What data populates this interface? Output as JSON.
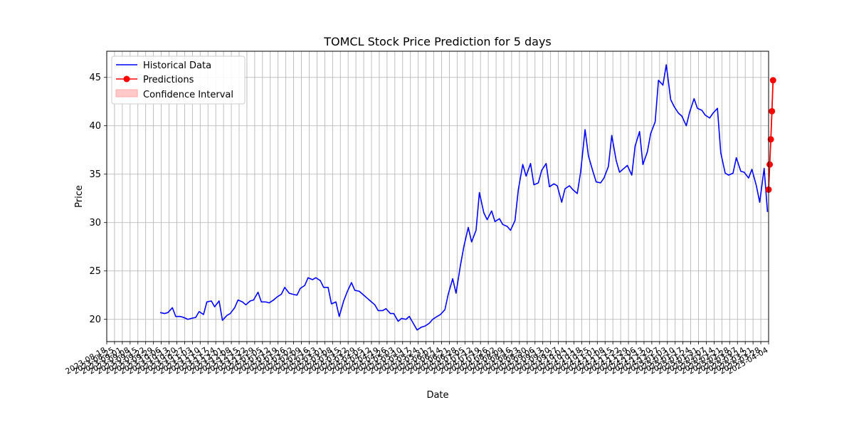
{
  "chart_data": {
    "type": "line",
    "title": "TOMCL Stock Price Prediction for 5 days",
    "xlabel": "Date",
    "ylabel": "Price",
    "ylim": [
      17.7,
      47.7
    ],
    "yticks": [
      20,
      25,
      30,
      35,
      40,
      45
    ],
    "grid": true,
    "legend_position": "top-left",
    "legend": [
      "Historical Data",
      "Predictions",
      "Confidence Interval"
    ],
    "colors": {
      "historical": "#0000ff",
      "predictions": "#ff0000",
      "confidence": "#ffbbbb",
      "grid": "#b0b0b0"
    },
    "x_range": [
      "2023-08-18",
      "2025-04-04"
    ],
    "x_tick_first": "2023-08-18",
    "x_tick_last": "2025-04-04",
    "series": [
      {
        "name": "Historical Data",
        "points": [
          [
            "2023-10-05",
            20.7
          ],
          [
            "2023-10-09",
            20.6
          ],
          [
            "2023-10-12",
            20.7
          ],
          [
            "2023-10-16",
            21.2
          ],
          [
            "2023-10-19",
            20.3
          ],
          [
            "2023-10-23",
            20.3
          ],
          [
            "2023-10-26",
            20.2
          ],
          [
            "2023-10-30",
            20.0
          ],
          [
            "2023-11-02",
            20.1
          ],
          [
            "2023-11-06",
            20.2
          ],
          [
            "2023-11-09",
            20.8
          ],
          [
            "2023-11-13",
            20.5
          ],
          [
            "2023-11-16",
            21.8
          ],
          [
            "2023-11-20",
            21.9
          ],
          [
            "2023-11-23",
            21.3
          ],
          [
            "2023-11-27",
            21.9
          ],
          [
            "2023-11-30",
            19.9
          ],
          [
            "2023-12-04",
            20.4
          ],
          [
            "2023-12-07",
            20.6
          ],
          [
            "2023-12-11",
            21.2
          ],
          [
            "2023-12-14",
            22.0
          ],
          [
            "2023-12-18",
            21.8
          ],
          [
            "2023-12-21",
            21.5
          ],
          [
            "2023-12-25",
            21.9
          ],
          [
            "2023-12-28",
            22.0
          ],
          [
            "2024-01-01",
            22.8
          ],
          [
            "2024-01-04",
            21.8
          ],
          [
            "2024-01-08",
            21.8
          ],
          [
            "2024-01-11",
            21.7
          ],
          [
            "2024-01-15",
            22.0
          ],
          [
            "2024-01-18",
            22.3
          ],
          [
            "2024-01-22",
            22.6
          ],
          [
            "2024-01-25",
            23.3
          ],
          [
            "2024-01-29",
            22.7
          ],
          [
            "2024-02-01",
            22.6
          ],
          [
            "2024-02-05",
            22.5
          ],
          [
            "2024-02-08",
            23.2
          ],
          [
            "2024-02-12",
            23.5
          ],
          [
            "2024-02-15",
            24.3
          ],
          [
            "2024-02-19",
            24.1
          ],
          [
            "2024-02-22",
            24.3
          ],
          [
            "2024-02-26",
            24.0
          ],
          [
            "2024-02-29",
            23.3
          ],
          [
            "2024-03-04",
            23.3
          ],
          [
            "2024-03-07",
            21.6
          ],
          [
            "2024-03-11",
            21.8
          ],
          [
            "2024-03-14",
            20.3
          ],
          [
            "2024-03-18",
            21.9
          ],
          [
            "2024-03-21",
            22.8
          ],
          [
            "2024-03-25",
            23.8
          ],
          [
            "2024-03-28",
            23.0
          ],
          [
            "2024-04-01",
            22.9
          ],
          [
            "2024-04-04",
            22.6
          ],
          [
            "2024-04-08",
            22.2
          ],
          [
            "2024-04-11",
            21.9
          ],
          [
            "2024-04-15",
            21.5
          ],
          [
            "2024-04-18",
            20.9
          ],
          [
            "2024-04-22",
            20.9
          ],
          [
            "2024-04-25",
            21.1
          ],
          [
            "2024-04-29",
            20.6
          ],
          [
            "2024-05-02",
            20.6
          ],
          [
            "2024-05-06",
            19.8
          ],
          [
            "2024-05-09",
            20.1
          ],
          [
            "2024-05-13",
            20.0
          ],
          [
            "2024-05-16",
            20.3
          ],
          [
            "2024-05-20",
            19.5
          ],
          [
            "2024-05-23",
            18.9
          ],
          [
            "2024-05-27",
            19.2
          ],
          [
            "2024-05-30",
            19.3
          ],
          [
            "2024-06-03",
            19.6
          ],
          [
            "2024-06-06",
            20.0
          ],
          [
            "2024-06-10",
            20.3
          ],
          [
            "2024-06-13",
            20.5
          ],
          [
            "2024-06-17",
            21.0
          ],
          [
            "2024-06-20",
            22.6
          ],
          [
            "2024-06-24",
            24.2
          ],
          [
            "2024-06-27",
            22.7
          ],
          [
            "2024-07-01",
            25.6
          ],
          [
            "2024-07-04",
            27.5
          ],
          [
            "2024-07-08",
            29.5
          ],
          [
            "2024-07-11",
            28.0
          ],
          [
            "2024-07-15",
            29.2
          ],
          [
            "2024-07-18",
            33.1
          ],
          [
            "2024-07-22",
            31.0
          ],
          [
            "2024-07-25",
            30.3
          ],
          [
            "2024-07-29",
            31.2
          ],
          [
            "2024-08-01",
            30.1
          ],
          [
            "2024-08-05",
            30.4
          ],
          [
            "2024-08-08",
            29.8
          ],
          [
            "2024-08-12",
            29.6
          ],
          [
            "2024-08-15",
            29.2
          ],
          [
            "2024-08-19",
            30.2
          ],
          [
            "2024-08-22",
            33.4
          ],
          [
            "2024-08-26",
            36.0
          ],
          [
            "2024-08-29",
            34.8
          ],
          [
            "2024-09-02",
            36.1
          ],
          [
            "2024-09-05",
            33.9
          ],
          [
            "2024-09-09",
            34.1
          ],
          [
            "2024-09-12",
            35.4
          ],
          [
            "2024-09-16",
            36.1
          ],
          [
            "2024-09-19",
            33.7
          ],
          [
            "2024-09-23",
            34.0
          ],
          [
            "2024-09-26",
            33.8
          ],
          [
            "2024-09-30",
            32.1
          ],
          [
            "2024-10-03",
            33.5
          ],
          [
            "2024-10-07",
            33.8
          ],
          [
            "2024-10-10",
            33.4
          ],
          [
            "2024-10-14",
            33.0
          ],
          [
            "2024-10-17",
            35.2
          ],
          [
            "2024-10-21",
            39.6
          ],
          [
            "2024-10-24",
            36.9
          ],
          [
            "2024-10-28",
            35.3
          ],
          [
            "2024-10-31",
            34.2
          ],
          [
            "2024-11-04",
            34.1
          ],
          [
            "2024-11-07",
            34.6
          ],
          [
            "2024-11-11",
            35.8
          ],
          [
            "2024-11-14",
            39.0
          ],
          [
            "2024-11-18",
            36.4
          ],
          [
            "2024-11-21",
            35.2
          ],
          [
            "2024-11-25",
            35.6
          ],
          [
            "2024-11-28",
            35.9
          ],
          [
            "2024-12-02",
            34.9
          ],
          [
            "2024-12-05",
            37.9
          ],
          [
            "2024-12-09",
            39.4
          ],
          [
            "2024-12-12",
            36.0
          ],
          [
            "2024-12-16",
            37.3
          ],
          [
            "2024-12-19",
            39.2
          ],
          [
            "2024-12-23",
            40.4
          ],
          [
            "2024-12-26",
            44.7
          ],
          [
            "2024-12-30",
            44.2
          ],
          [
            "2025-01-02",
            46.3
          ],
          [
            "2025-01-06",
            42.7
          ],
          [
            "2025-01-09",
            42.0
          ],
          [
            "2025-01-13",
            41.3
          ],
          [
            "2025-01-16",
            41.0
          ],
          [
            "2025-01-20",
            40.0
          ],
          [
            "2025-01-23",
            41.4
          ],
          [
            "2025-01-27",
            42.8
          ],
          [
            "2025-01-30",
            41.8
          ],
          [
            "2025-02-03",
            41.6
          ],
          [
            "2025-02-06",
            41.1
          ],
          [
            "2025-02-10",
            40.8
          ],
          [
            "2025-02-13",
            41.3
          ],
          [
            "2025-02-17",
            41.8
          ],
          [
            "2025-02-20",
            37.2
          ],
          [
            "2025-02-24",
            35.1
          ],
          [
            "2025-02-27",
            34.9
          ],
          [
            "2025-03-03",
            35.1
          ],
          [
            "2025-03-06",
            36.7
          ],
          [
            "2025-03-10",
            35.3
          ],
          [
            "2025-03-13",
            35.2
          ],
          [
            "2025-03-17",
            34.6
          ],
          [
            "2025-03-20",
            35.5
          ],
          [
            "2025-03-24",
            33.8
          ],
          [
            "2025-03-27",
            32.1
          ],
          [
            "2025-03-31",
            35.6
          ],
          [
            "2025-04-03",
            31.1
          ]
        ]
      },
      {
        "name": "Predictions",
        "points": [
          [
            "2025-04-04",
            33.4
          ],
          [
            "2025-04-05",
            36.0
          ],
          [
            "2025-04-06",
            38.6
          ],
          [
            "2025-04-07",
            41.5
          ],
          [
            "2025-04-08",
            44.7
          ]
        ]
      }
    ]
  }
}
